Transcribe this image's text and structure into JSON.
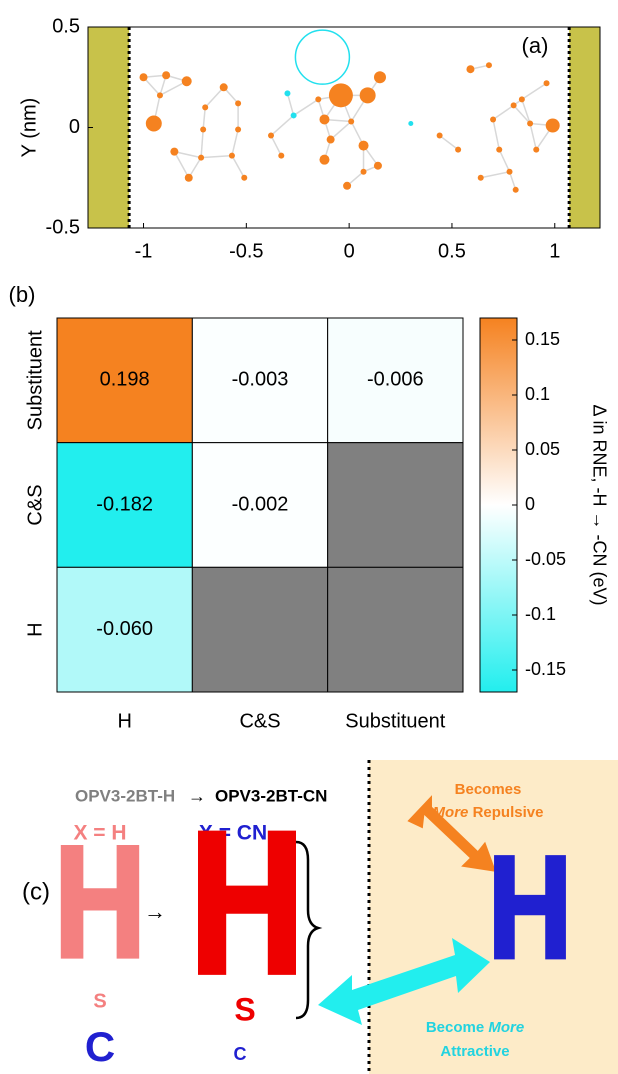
{
  "chart_data": [
    {
      "type": "scatter",
      "panel_label": "(a)",
      "y_label": "Y (nm)",
      "xlim": [
        -1.27,
        1.22
      ],
      "ylim": [
        -0.5,
        0.5
      ],
      "xticks": [
        -1,
        -0.5,
        0,
        0.5,
        1
      ],
      "yticks": [
        0.5,
        0,
        -0.5
      ],
      "walls": [
        -1.07,
        1.07
      ],
      "wall_color": "#c8c24a",
      "series": [
        {
          "color": "#f58220",
          "x": [
            -1.0,
            -0.89,
            -0.79,
            -0.92,
            -0.95,
            -0.7,
            -0.61,
            -0.54,
            -0.71,
            -0.72,
            -0.57,
            -0.54,
            -0.85,
            -0.78,
            -0.51,
            -0.38,
            -0.33,
            -0.15,
            -0.12,
            -0.04,
            0.09,
            0.15,
            0.01,
            -0.09,
            0.07,
            -0.12,
            -0.01,
            0.07,
            0.14,
            0.44,
            0.53,
            0.59,
            0.68,
            0.7,
            0.8,
            0.84,
            0.88,
            0.91,
            0.73,
            0.78,
            0.64,
            0.81,
            0.96,
            0.99
          ],
          "values": [
            0.25,
            0.26,
            0.23,
            0.16,
            0.02,
            0.1,
            0.2,
            0.12,
            -0.01,
            -0.15,
            -0.14,
            -0.01,
            -0.12,
            -0.25,
            -0.25,
            -0.04,
            -0.14,
            0.14,
            0.04,
            0.16,
            0.16,
            0.25,
            0.03,
            -0.06,
            -0.09,
            -0.16,
            -0.29,
            -0.22,
            -0.19,
            -0.04,
            -0.11,
            0.29,
            0.31,
            0.04,
            0.11,
            0.14,
            0.02,
            -0.11,
            -0.11,
            -0.22,
            -0.25,
            -0.31,
            0.22,
            0.01
          ],
          "sizes": [
            4,
            4,
            5,
            3,
            8,
            3,
            4,
            3,
            3,
            3,
            3,
            3,
            4,
            4,
            3,
            3,
            3,
            3,
            5,
            12,
            8,
            6,
            3,
            4,
            5,
            5,
            4,
            3,
            4,
            3,
            3,
            4,
            3,
            3,
            3,
            3,
            3,
            3,
            3,
            3,
            3,
            3,
            3,
            7
          ]
        },
        {
          "color": "#22e0ee",
          "x": [
            -0.3,
            -0.27,
            0.3
          ],
          "values": [
            0.17,
            0.06,
            0.02
          ],
          "sizes": [
            3,
            3,
            2.5
          ]
        },
        {
          "color": "#22e0ee",
          "marker": "open",
          "x": [
            -0.13
          ],
          "values": [
            0.35
          ],
          "sizes": [
            27
          ]
        }
      ]
    },
    {
      "type": "heatmap",
      "panel_label": "(b)",
      "rows": [
        "Substituent",
        "C&S",
        "H"
      ],
      "columns": [
        "H",
        "C&S",
        "Substituent"
      ],
      "values": [
        [
          0.198,
          -0.003,
          -0.006
        ],
        [
          -0.182,
          -0.002,
          null
        ],
        [
          -0.06,
          null,
          null
        ]
      ],
      "value_labels": [
        [
          "0.198",
          "-0.003",
          "-0.006"
        ],
        [
          "-0.182",
          "-0.002",
          null
        ],
        [
          "-0.060",
          null,
          null
        ]
      ],
      "clim": [
        -0.17,
        0.17
      ],
      "colors": [
        "#22eeee",
        "#ffffff",
        "#f58220"
      ],
      "null_color": "#808080",
      "cticks": [
        0.15,
        0.1,
        0.05,
        0,
        -0.05,
        -0.1,
        -0.15
      ],
      "colorbar_label": "Δ in RNE, -H → -CN (eV)"
    }
  ],
  "diagram": {
    "panel_label": "(c)",
    "from": "OPV3-2BT-H",
    "arrow": "→",
    "to": "OPV3-2BT-CN",
    "left": {
      "label": "X = H",
      "big": "H",
      "s": "S",
      "c": "C"
    },
    "mid_arrow": "→",
    "right": {
      "label": "X = CN",
      "big": "H",
      "s": "S",
      "c": "C"
    },
    "target": "H",
    "repulsive": [
      "Becomes",
      "More",
      "Repulsive"
    ],
    "attractive": [
      "Become",
      "More",
      "Attractive"
    ]
  }
}
